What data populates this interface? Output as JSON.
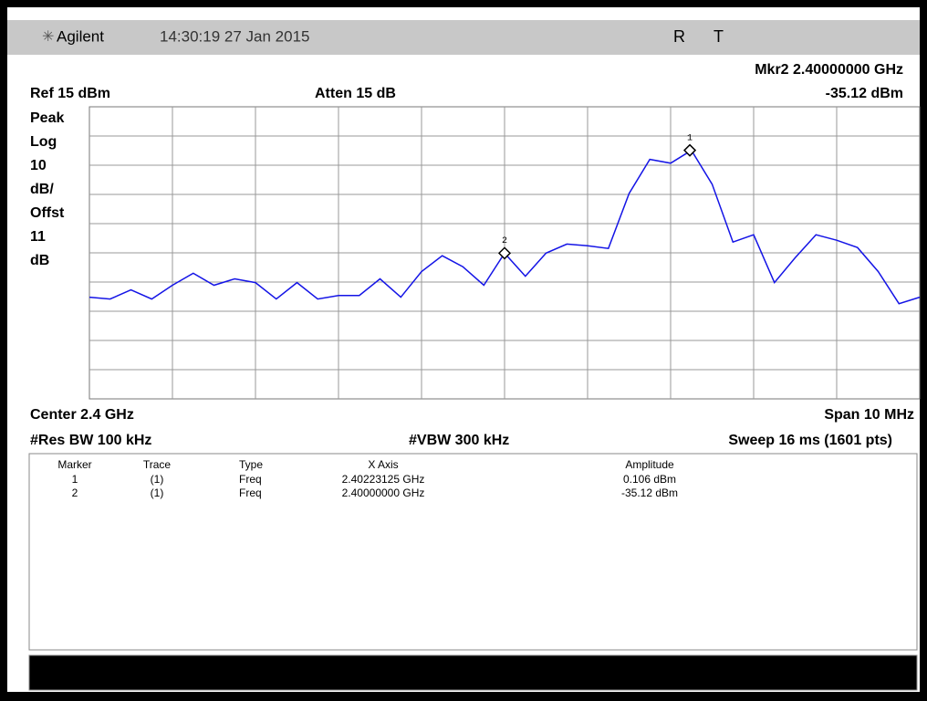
{
  "header": {
    "brand": "Agilent",
    "datetime": "14:30:19  27 Jan 2015",
    "status": [
      "R",
      "T"
    ]
  },
  "readout": {
    "marker": "Mkr2  2.40000000 GHz",
    "ref": "Ref 15 dBm",
    "atten": "Atten 15 dB",
    "marker_amp": "-35.12 dBm",
    "scale": [
      "Peak",
      "Log",
      "10",
      "dB/",
      "Offst",
      "11",
      "dB"
    ],
    "center": "Center 2.4 GHz",
    "span": "Span 10 MHz",
    "rbw": "#Res BW 100 kHz",
    "vbw": "#VBW 300 kHz",
    "sweep": "Sweep 16 ms (1601 pts)"
  },
  "table": {
    "columns": [
      "Marker",
      "Trace",
      "Type",
      "X Axis",
      "Amplitude"
    ],
    "rows": [
      [
        "1",
        "(1)",
        "Freq",
        "2.40223125 GHz",
        "0.106 dBm"
      ],
      [
        "2",
        "(1)",
        "Freq",
        "2.40000000 GHz",
        "-35.12 dBm"
      ]
    ]
  },
  "chart_data": {
    "type": "line",
    "x": [
      2.395,
      2.39525,
      2.3955,
      2.39575,
      2.396,
      2.39625,
      2.3965,
      2.39675,
      2.397,
      2.39725,
      2.3975,
      2.39775,
      2.398,
      2.39825,
      2.3985,
      2.39875,
      2.399,
      2.39925,
      2.3995,
      2.39975,
      2.4,
      2.40025,
      2.4005,
      2.40075,
      2.401,
      2.40125,
      2.4015,
      2.40175,
      2.402,
      2.40225,
      2.4025,
      2.40275,
      2.403,
      2.40325,
      2.4035,
      2.40375,
      2.404,
      2.40425,
      2.4045,
      2.40475,
      2.405
    ],
    "xlim": [
      2.395,
      2.405
    ],
    "ylim": [
      -85,
      15
    ],
    "series": [
      {
        "color": "#1414e6",
        "values": [
          -50.2,
          -50.8,
          -47.7,
          -50.8,
          -46.1,
          -42.0,
          -46.1,
          -43.9,
          -45.2,
          -50.8,
          -45.2,
          -50.8,
          -49.6,
          -49.6,
          -43.9,
          -50.2,
          -41.4,
          -36.0,
          -39.8,
          -46.1,
          -35.12,
          -43.0,
          -35.1,
          -32.0,
          -32.6,
          -33.5,
          -14.7,
          -3.0,
          -4.3,
          0.106,
          -11.5,
          -31.3,
          -28.8,
          -45.2,
          -36.7,
          -28.8,
          -30.7,
          -33.2,
          -41.4,
          -52.4,
          -50.2
        ]
      }
    ],
    "markers": [
      {
        "label": "1",
        "x": 2.40223125,
        "y": 0.106
      },
      {
        "label": "2",
        "x": 2.4,
        "y": -35.12
      }
    ]
  }
}
